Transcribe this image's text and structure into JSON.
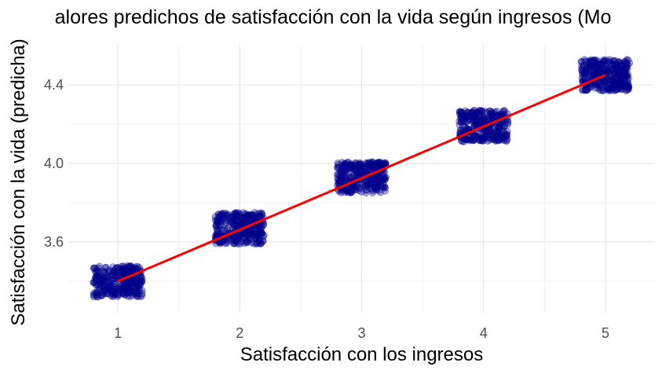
{
  "chart_data": {
    "type": "scatter",
    "title": "alores predichos de satisfacción con la vida según ingresos (Mo",
    "xlabel": "Satisfacción con los ingresos",
    "ylabel": "Satisfacción con la vida (predicha)",
    "xlim": [
      0.6,
      5.4
    ],
    "ylim": [
      3.24,
      4.6
    ],
    "x_ticks": [
      1,
      2,
      3,
      4,
      5
    ],
    "y_ticks": [
      3.6,
      4.0,
      4.4
    ],
    "y_tick_labels": [
      "3.6",
      "4.0",
      "4.4"
    ],
    "grid": true,
    "series": [
      {
        "type": "jittered-points",
        "color": "#00008B",
        "groups": [
          {
            "x": 1,
            "y_values": [
              3.36,
              3.44
            ]
          },
          {
            "x": 2,
            "y_values": [
              3.63,
              3.71
            ]
          },
          {
            "x": 3,
            "y_values": [
              3.89,
              3.97
            ]
          },
          {
            "x": 4,
            "y_values": [
              4.15,
              4.23
            ]
          },
          {
            "x": 5,
            "y_values": [
              4.41,
              4.49
            ]
          }
        ]
      },
      {
        "type": "line",
        "color": "#FF0000",
        "x": [
          1,
          5
        ],
        "y": [
          3.4,
          4.45
        ]
      }
    ]
  }
}
